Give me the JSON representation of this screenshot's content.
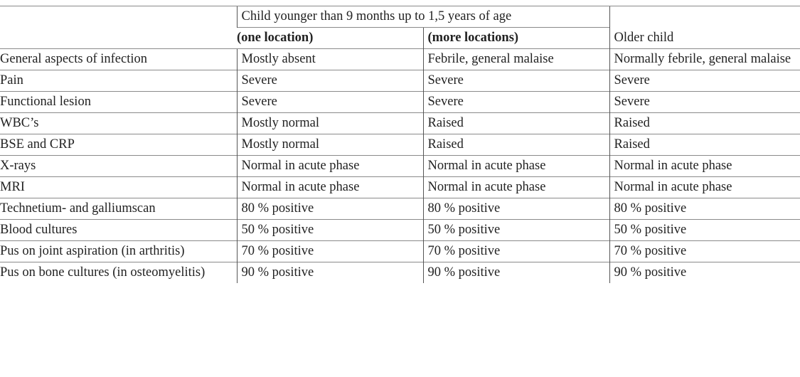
{
  "table": {
    "group_header": "Child younger than 9 months up to 1,5 years of age",
    "sub_headers": [
      "(one location)",
      "(more locations)"
    ],
    "older_header": "Older child",
    "rows": [
      [
        "General aspects of infection",
        "Mostly absent",
        "Febrile, general malaise",
        "Normally febrile, general malaise"
      ],
      [
        "Pain",
        "Severe",
        "Severe",
        "Severe"
      ],
      [
        "Functional lesion",
        "Severe",
        "Severe",
        "Severe"
      ],
      [
        "WBC’s",
        "Mostly normal",
        "Raised",
        "Raised"
      ],
      [
        "BSE and CRP",
        "Mostly normal",
        "Raised",
        "Raised"
      ],
      [
        "X-rays",
        "Normal in acute phase",
        "Normal in acute phase",
        "Normal in acute phase"
      ],
      [
        "MRI",
        "Normal in acute phase",
        "Normal in acute phase",
        "Normal in acute phase"
      ],
      [
        "Technetium- and galliumscan",
        "80 % positive",
        "80 % positive",
        "80 % positive"
      ],
      [
        "Blood cultures",
        "50 % positive",
        "50 % positive",
        "50 % positive"
      ],
      [
        "Pus on joint aspiration (in arthritis)",
        "70 % positive",
        "70 % positive",
        "70 % positive"
      ],
      [
        "Pus on bone cultures (in osteomyelitis)",
        "90 % positive",
        "90 % positive",
        "90 % positive"
      ]
    ]
  }
}
